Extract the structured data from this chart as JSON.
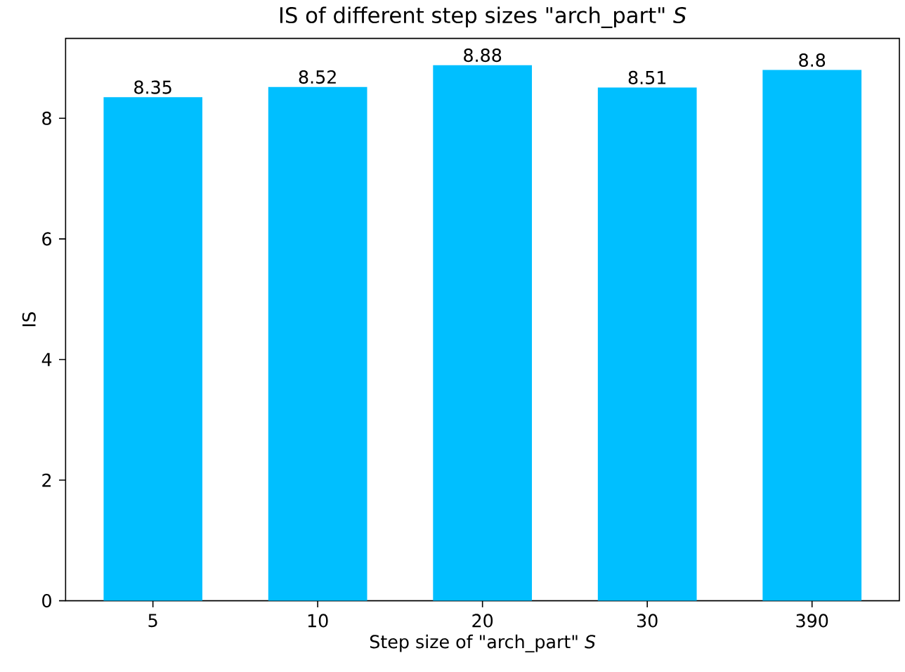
{
  "chart_data": {
    "type": "bar",
    "title": "IS of different step sizes \"arch_part\" *S*",
    "xlabel": "Step size of \"arch_part\" *S*",
    "ylabel": "IS",
    "categories": [
      "5",
      "10",
      "20",
      "30",
      "390"
    ],
    "values": [
      8.35,
      8.52,
      8.88,
      8.51,
      8.8
    ],
    "color": "#00bfff",
    "ylim": [
      0,
      9.324
    ],
    "yticks": [
      0,
      2,
      4,
      6,
      8
    ],
    "data_labels": true
  }
}
